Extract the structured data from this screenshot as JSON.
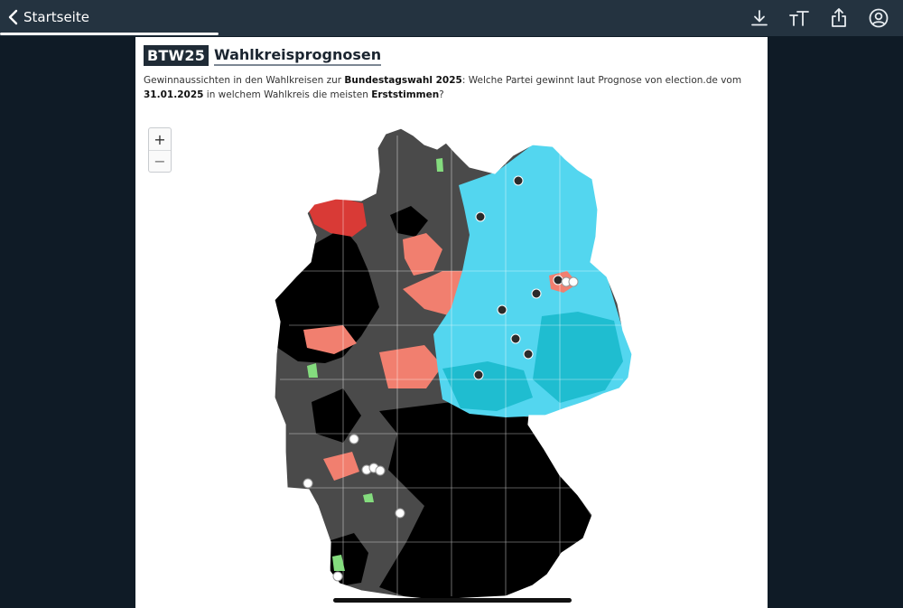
{
  "topbar": {
    "back_label": "Startseite",
    "icons": [
      "download-icon",
      "text-size-icon",
      "share-icon",
      "account-icon"
    ]
  },
  "article": {
    "badge": "BTW25",
    "title": "Wahlkreisprognosen",
    "desc_1": "Gewinnaussichten in den Wahlkreisen zur ",
    "desc_b1": "Bundestagswahl 2025",
    "desc_2": ": Welche Partei gewinnt laut Prognose von election.de vom ",
    "desc_b2": "31.01.2025",
    "desc_3": " in welchem Wahlkreis die meisten ",
    "desc_b3": "Erststimmen",
    "desc_4": "?"
  },
  "zoom": {
    "plus": "+",
    "minus": "−"
  },
  "colors": {
    "union": "#000000",
    "union_lean": "#4a4a4a",
    "spd": "#d93a36",
    "spd_lean": "#f17f6f",
    "afd": "#53d6ef",
    "afd_strong": "#1fbdd0",
    "green": "#84dc7e",
    "marker_dark": "#2b2b2b",
    "marker_light": "#ffffff"
  }
}
